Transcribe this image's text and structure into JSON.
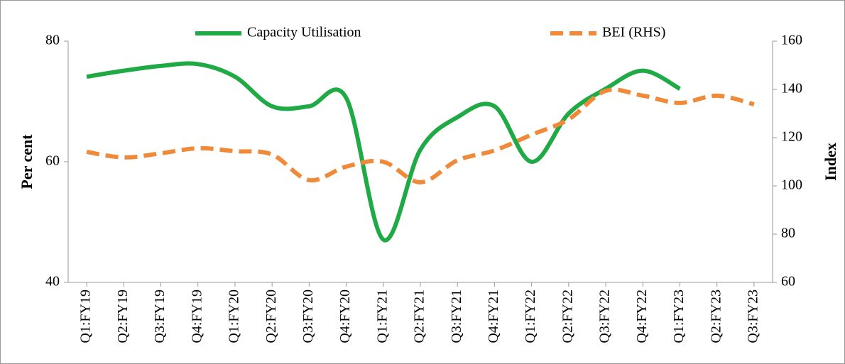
{
  "chart_data": {
    "type": "line",
    "categories": [
      "Q1:FY19",
      "Q2:FY19",
      "Q3:FY19",
      "Q4:FY19",
      "Q1:FY20",
      "Q2:FY20",
      "Q3:FY20",
      "Q4:FY20",
      "Q1:FY21",
      "Q2:FY21",
      "Q3:FY21",
      "Q4:FY21",
      "Q1:FY22",
      "Q2:FY22",
      "Q3:FY22",
      "Q4:FY22",
      "Q1:FY23",
      "Q2:FY23",
      "Q3:FY23"
    ],
    "series": [
      {
        "name": "Capacity Utilisation",
        "color": "#1faa45",
        "dash": false,
        "values": [
          74.1,
          75.1,
          75.9,
          76.2,
          74.1,
          69.2,
          69.2,
          70.6,
          47.1,
          62,
          67.4,
          69.2,
          60,
          68,
          72.1,
          75.1,
          72.1,
          null,
          null
        ]
      },
      {
        "name": "BEI (RHS)",
        "color": "#ef8a3a",
        "dash": true,
        "axis": "y2",
        "values": [
          114.1,
          111.8,
          113.5,
          115.6,
          114.4,
          113,
          102.4,
          108,
          110,
          101.5,
          110.6,
          114.7,
          121.2,
          127.6,
          139.4,
          137.4,
          134.4,
          137.4,
          133.8
        ]
      }
    ],
    "ylabel": "Per cent",
    "y2label": "Index",
    "ylim": [
      40,
      80
    ],
    "yticks": [
      40,
      60,
      80
    ],
    "y2lim": [
      60,
      160
    ],
    "y2ticks": [
      60,
      80,
      100,
      120,
      140,
      160
    ],
    "grid": false
  }
}
